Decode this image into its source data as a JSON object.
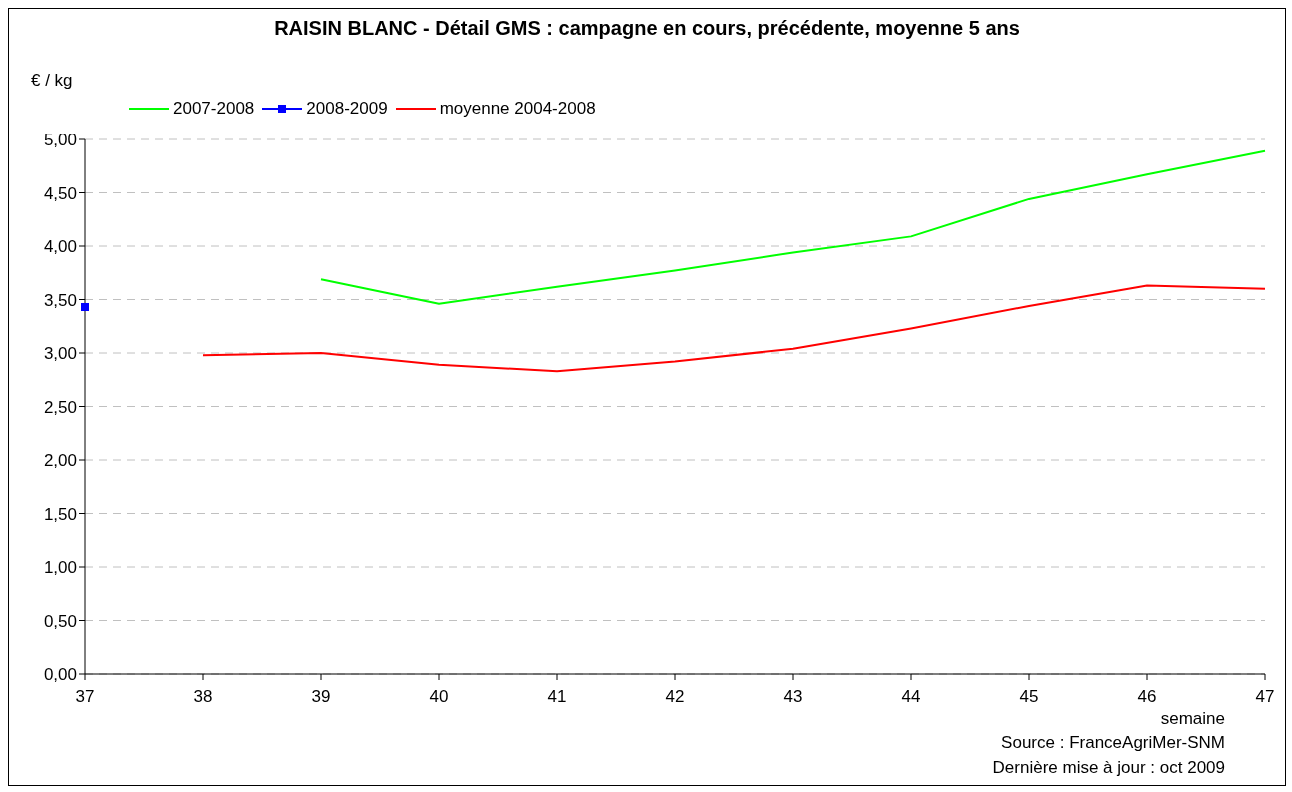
{
  "chart_data": {
    "type": "line",
    "title": "RAISIN BLANC - Détail GMS : campagne en cours, précédente, moyenne 5 ans",
    "ylabel": "€ / kg",
    "xlabel": "semaine",
    "categories": [
      "37",
      "38",
      "39",
      "40",
      "41",
      "42",
      "43",
      "44",
      "45",
      "46",
      "47"
    ],
    "series": [
      {
        "name": "2007-2008",
        "color": "#00ff00",
        "values": [
          null,
          null,
          3.69,
          3.46,
          3.62,
          3.77,
          3.94,
          4.09,
          4.44,
          4.67,
          4.89
        ]
      },
      {
        "name": "2008-2009",
        "color": "#0000ff",
        "marker": "square",
        "values": [
          3.43,
          null,
          null,
          null,
          null,
          null,
          null,
          null,
          null,
          null,
          null
        ]
      },
      {
        "name": "moyenne 2004-2008",
        "color": "#ff0000",
        "values": [
          null,
          2.98,
          3.0,
          2.89,
          2.83,
          2.92,
          3.04,
          3.23,
          3.44,
          3.63,
          3.6
        ]
      }
    ],
    "ylim": [
      0,
      5
    ],
    "yticks": [
      {
        "value": 0,
        "label": "0,00"
      },
      {
        "value": 0.5,
        "label": "0,50"
      },
      {
        "value": 1,
        "label": "1,00"
      },
      {
        "value": 1.5,
        "label": "1,50"
      },
      {
        "value": 2,
        "label": "2,00"
      },
      {
        "value": 2.5,
        "label": "2,50"
      },
      {
        "value": 3,
        "label": "3,00"
      },
      {
        "value": 3.5,
        "label": "3,50"
      },
      {
        "value": 4,
        "label": "4,00"
      },
      {
        "value": 4.5,
        "label": "4,50"
      },
      {
        "value": 5,
        "label": "5,00"
      }
    ],
    "grid": "y",
    "legend": "top left",
    "marker": "none",
    "line_style": "solid",
    "annotations": [
      "Source : FranceAgriMer-SNM",
      "Dernière mise à jour : oct 2009"
    ]
  }
}
